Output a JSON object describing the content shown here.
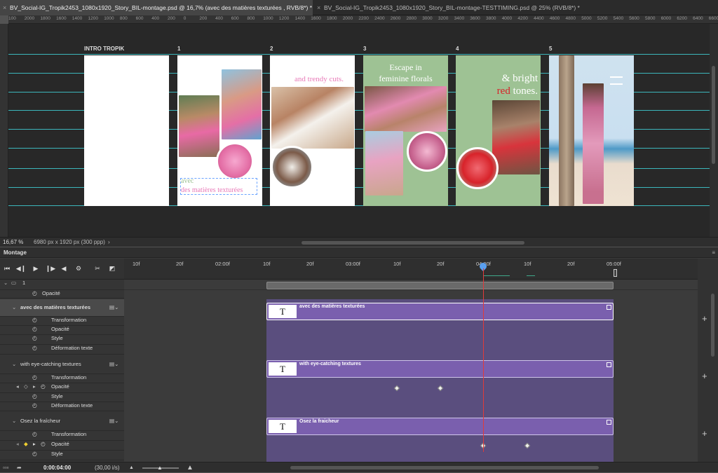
{
  "tabs": [
    {
      "label": "BV_Social-IG_Tropik2453_1080x1920_Story_BIL-montage.psd @ 16,7% (avec des matières texturées , RVB/8*) *"
    },
    {
      "label": "BV_Social-IG_Tropik2453_1080x1920_Story_BIL-montage-TESTTIMING.psd @ 25% (RVB/8*) *"
    }
  ],
  "ruler": {
    "marks": [
      "100",
      "2000",
      "1800",
      "1600",
      "1400",
      "1200",
      "1000",
      "800",
      "600",
      "400",
      "200",
      "0",
      "200",
      "400",
      "600",
      "800",
      "1000",
      "1200",
      "1400",
      "1600",
      "1800",
      "2000",
      "2200",
      "2400",
      "2600",
      "2800",
      "3000",
      "3200",
      "3400",
      "3600",
      "3800",
      "4000",
      "4200",
      "4400",
      "4600",
      "4800",
      "5000",
      "5200",
      "5400",
      "5600",
      "5800",
      "6000",
      "6200",
      "6400",
      "6600"
    ]
  },
  "artboards": [
    {
      "label": "INTRO TROPIK"
    },
    {
      "label": "1",
      "text1": "avec",
      "text2": "des matières texturées"
    },
    {
      "label": "2",
      "text1": "and trendy cuts."
    },
    {
      "label": "3",
      "text1": "Escape in",
      "text2": "feminine florals"
    },
    {
      "label": "4",
      "text1": "& bright",
      "text2": "red",
      "text3": " tones."
    },
    {
      "label": "5"
    }
  ],
  "status": {
    "zoom": "16,67 %",
    "dims": "6980 px x 1920 px (300 ppp)",
    "arrow": "›"
  },
  "panel": {
    "title": "Montage",
    "menu_icon": "≡"
  },
  "toolbar": {
    "first": "⏮",
    "prev": "◀❙",
    "play": "▶",
    "next": "❙▶",
    "audio": "◀",
    "settings": "⚙",
    "split": "✂",
    "transition": "◩"
  },
  "timecodes": [
    "10f",
    "20f",
    "02:00f",
    "10f",
    "20f",
    "03:00f",
    "10f",
    "20f",
    "04:00f",
    "10f",
    "20f",
    "05:00f"
  ],
  "layers": {
    "group": {
      "label": "1",
      "opacity": "Opacité"
    },
    "items": [
      {
        "label": "avec des matières texturées",
        "clip": "avec des matières texturées",
        "thumb": "T",
        "props": [
          "Transformation",
          "Opacité",
          "Style",
          "Déformation texte"
        ]
      },
      {
        "label": "with eye-catching textures",
        "clip": "with eye-catching textures",
        "thumb": "T",
        "props": [
          "Transformation",
          "Opacité",
          "Style",
          "Déformation texte"
        ]
      },
      {
        "label": "Osez la fraîcheur",
        "clip": "Osez la fraicheur",
        "thumb": "T",
        "props": [
          "Transformation",
          "Opacité",
          "Style"
        ]
      }
    ]
  },
  "footer": {
    "time": "0:00:04:00",
    "fps": "(30,00 i/s)"
  },
  "colors": {
    "accent_purple": "#7a5fae",
    "guide": "#3fd0d6",
    "pink": "#e87ab8",
    "green": "#9ec294",
    "red": "#d8232a"
  }
}
